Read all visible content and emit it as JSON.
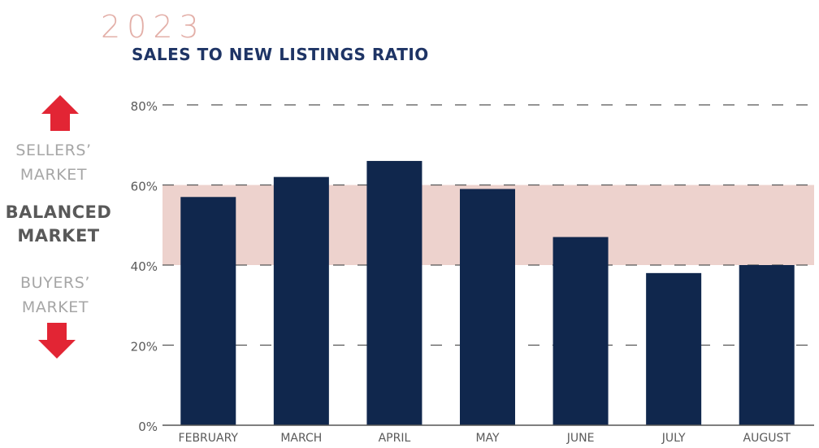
{
  "header": {
    "year": "2023",
    "title": "SALES TO NEW LISTINGS RATIO"
  },
  "side": {
    "sellers": [
      "SELLERS’",
      "MARKET"
    ],
    "balanced": [
      "BALANCED",
      "MARKET"
    ],
    "buyers": [
      "BUYERS’",
      "MARKET"
    ]
  },
  "colors": {
    "bar": "#10274d",
    "band": "#edd2cd",
    "year": "#e3afa8",
    "title": "#1e3465",
    "arrow": "#e22534",
    "grid": "#555555",
    "axis_text": "#5a5a5a"
  },
  "icons": [
    "arrow-up-icon",
    "arrow-down-icon"
  ],
  "chart_data": {
    "type": "bar",
    "title": "SALES TO NEW LISTINGS RATIO",
    "categories": [
      "FEBRUARY",
      "MARCH",
      "APRIL",
      "MAY",
      "JUNE",
      "JULY",
      "AUGUST"
    ],
    "values": [
      57,
      62,
      66,
      59,
      47,
      38,
      40
    ],
    "unit": "%",
    "ylim": [
      0,
      80
    ],
    "yticks": [
      0,
      20,
      40,
      60,
      80
    ],
    "ytick_labels": [
      "0%",
      "20%",
      "40%",
      "60%",
      "80%"
    ],
    "balanced_band": [
      40,
      60
    ],
    "grid": "dashed horizontal",
    "legend": "none"
  }
}
